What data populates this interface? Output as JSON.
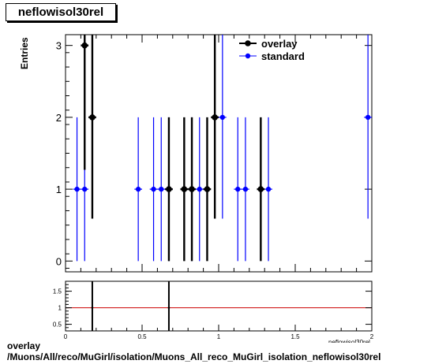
{
  "title": "neflowisol30rel",
  "ylabel": "Entries",
  "footer": {
    "line1": "overlay",
    "line2": "/Muons/All/reco/MuGirl/isolation/Muons_All_reco_MuGirl_isolation_neflowisol30rel"
  },
  "xlabel_stub": "neflowisol30rel",
  "colors": {
    "overlay": "#000000",
    "standard": "#0000ff",
    "ratio_line": "#cc0000"
  },
  "chart_data": [
    {
      "type": "scatter",
      "title": "neflowisol30rel",
      "ylabel": "Entries",
      "xlim": [
        0,
        2
      ],
      "ylim": [
        -0.15,
        3.15
      ],
      "yticks": [
        0,
        1,
        2,
        3
      ],
      "xticks": [
        0,
        0.5,
        1,
        1.5,
        2
      ],
      "legend": {
        "placement": "top-right",
        "entries": [
          "overlay",
          "standard"
        ]
      },
      "series": [
        {
          "name": "overlay",
          "x": [
            0.125,
            0.175,
            0.675,
            0.775,
            0.825,
            0.925,
            0.975,
            1.275
          ],
          "y": [
            3,
            2,
            1,
            1,
            1,
            1,
            2,
            1
          ],
          "err": [
            1.73,
            1.41,
            1,
            1,
            1,
            1,
            1.41,
            1
          ]
        },
        {
          "name": "standard",
          "x": [
            0.075,
            0.125,
            0.475,
            0.575,
            0.625,
            0.675,
            0.825,
            0.875,
            1.025,
            1.125,
            1.175,
            1.325,
            1.975
          ],
          "y": [
            1,
            1,
            1,
            1,
            1,
            1,
            1,
            1,
            2,
            1,
            1,
            1,
            2
          ],
          "err": [
            1,
            1,
            1,
            1,
            1,
            1,
            1,
            1,
            1.41,
            1,
            1,
            1,
            1.41
          ]
        }
      ]
    },
    {
      "type": "scatter",
      "xlim": [
        0,
        2
      ],
      "ylim": [
        0.3,
        1.8
      ],
      "yticks": [
        0.5,
        1,
        1.5
      ],
      "xticks": [
        0,
        0.5,
        1,
        1.5,
        2
      ],
      "reference_line": 1,
      "series": [
        {
          "x": [
            0.175,
            0.675
          ],
          "y": [
            1,
            1
          ],
          "err_up": [
            1.0,
            1.0
          ],
          "err_down": [
            1.0,
            1.0
          ]
        }
      ]
    }
  ]
}
